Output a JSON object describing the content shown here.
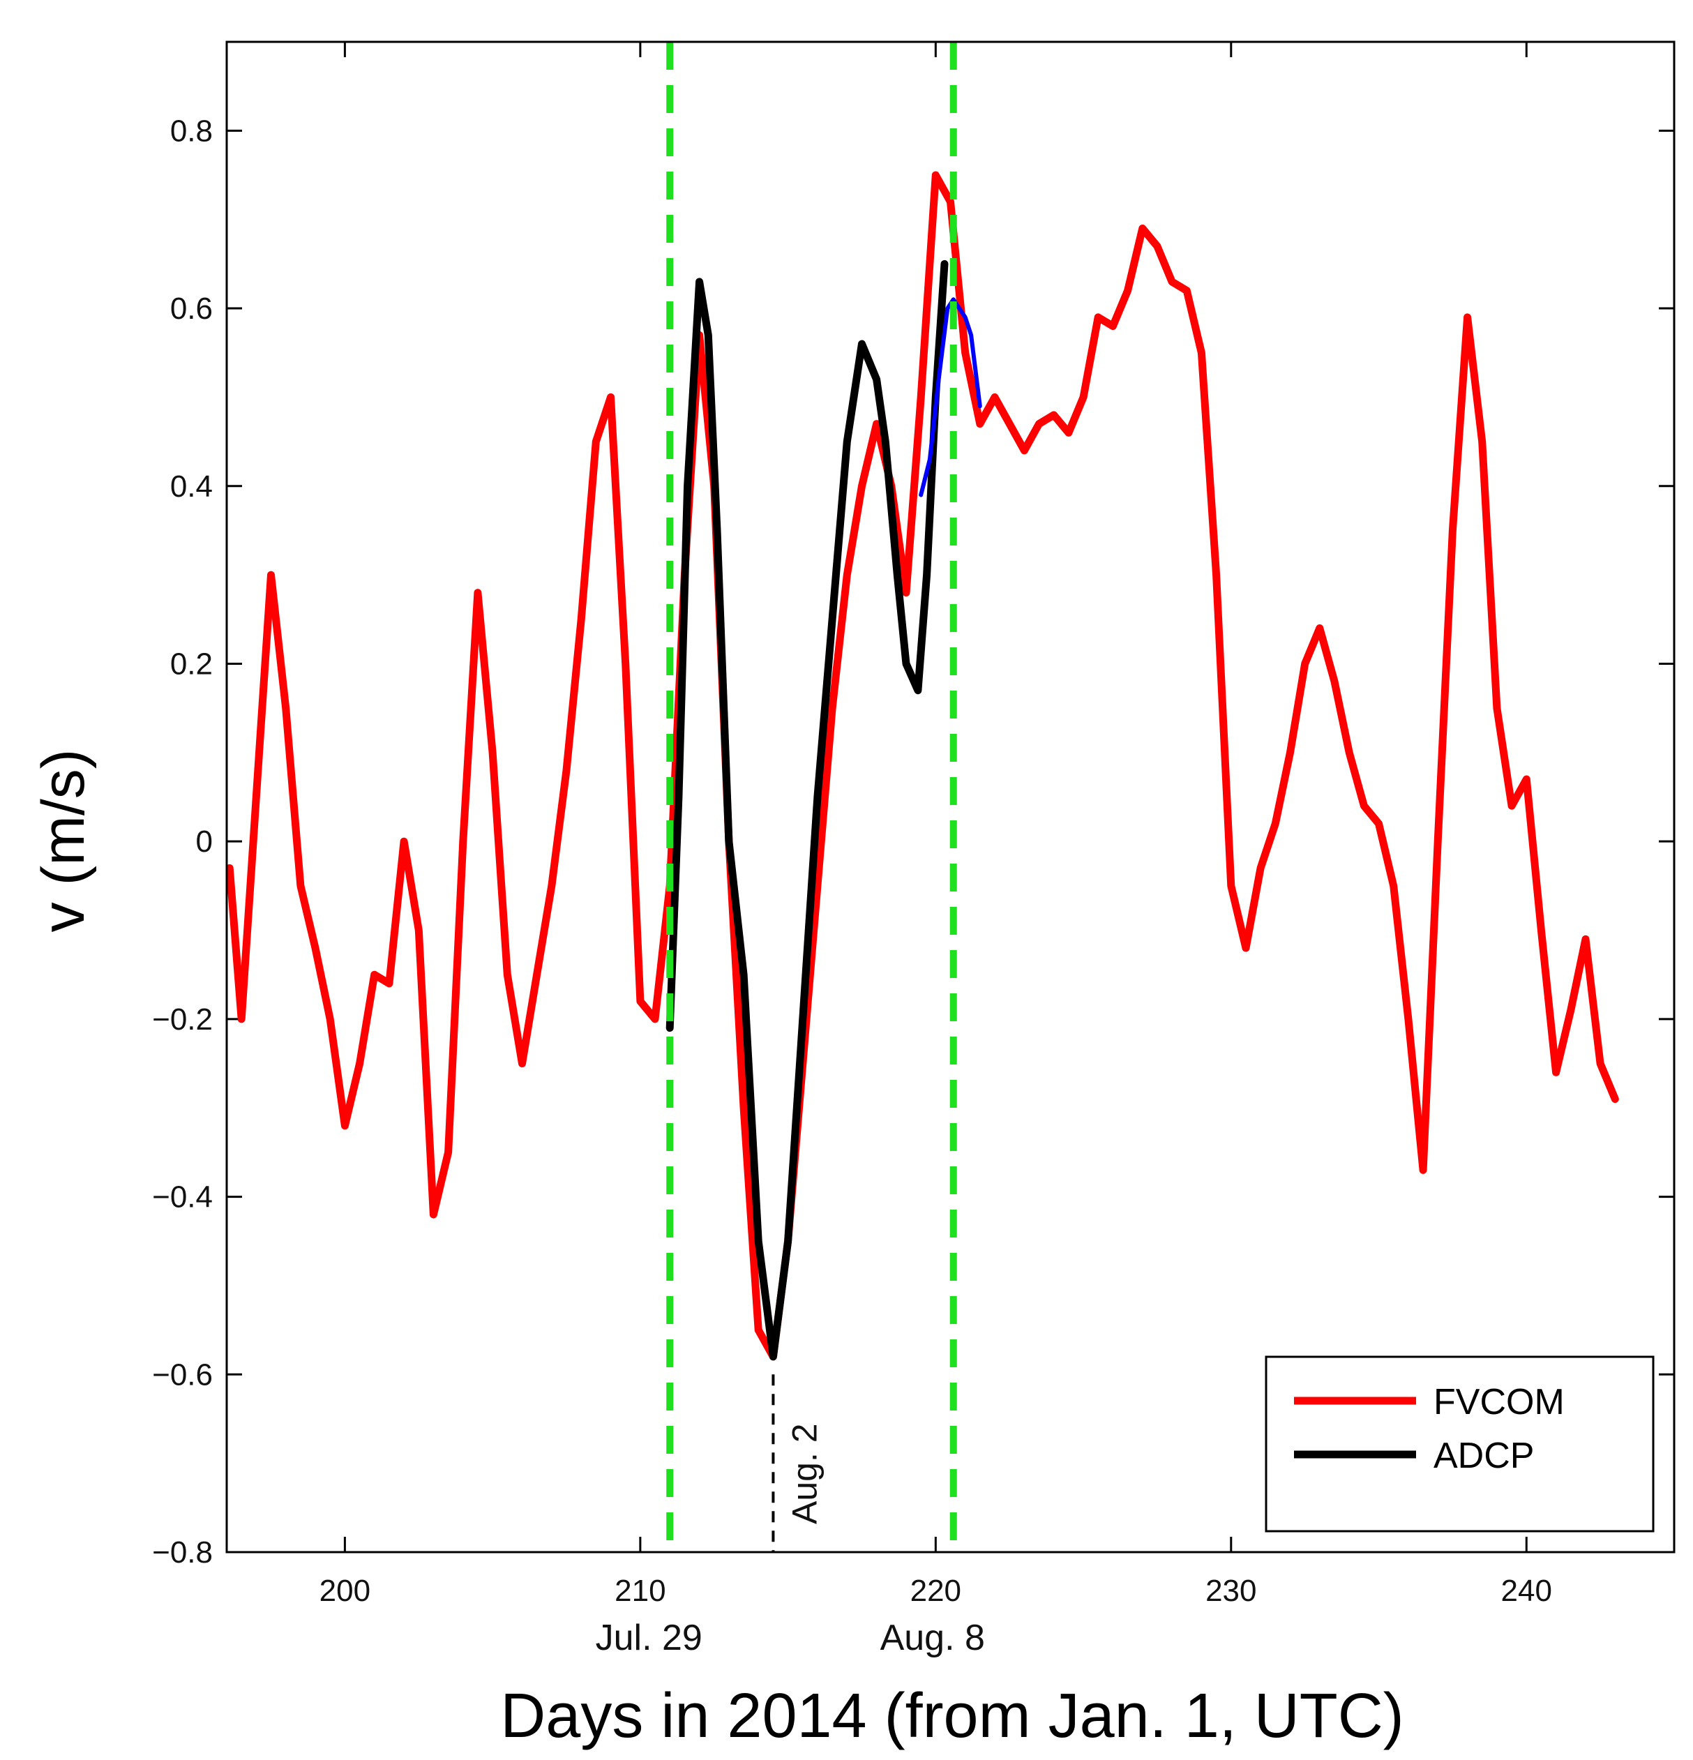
{
  "chart_data": {
    "type": "line",
    "title": "",
    "xlabel": "Days in 2014 (from Jan. 1, UTC)",
    "ylabel": "v (m/s)",
    "xlim": [
      196,
      245
    ],
    "ylim": [
      -0.8,
      0.9
    ],
    "xticks": [
      200,
      210,
      220,
      230,
      240
    ],
    "yticks": [
      -0.8,
      -0.6,
      -0.4,
      -0.2,
      0,
      0.2,
      0.4,
      0.6,
      0.8
    ],
    "ytick_labels": [
      "−0.8",
      "−0.6",
      "−0.4",
      "−0.2",
      "0",
      "0.2",
      "0.4",
      "0.6",
      "0.8"
    ],
    "date_markers": [
      {
        "x": 211,
        "label": "Jul. 29",
        "color": "#1fe01f",
        "style": "dashed"
      },
      {
        "x": 220.6,
        "label": "Aug. 8",
        "color": "#1fe01f",
        "style": "dashed"
      }
    ],
    "annotation": {
      "x": 214.5,
      "y_top": -0.6,
      "y_bottom": -0.8,
      "label": "Aug. 2",
      "color": "#000000",
      "style": "dashed"
    },
    "series": [
      {
        "name": "FVCOM",
        "color": "#ff0000",
        "x": [
          196.1,
          196.5,
          197.0,
          197.5,
          198.0,
          198.5,
          199.0,
          199.5,
          200.0,
          200.5,
          201.0,
          201.5,
          202.0,
          202.5,
          203.0,
          203.5,
          204.0,
          204.5,
          205.0,
          205.5,
          206.0,
          206.5,
          207.0,
          207.5,
          208.0,
          208.5,
          209.0,
          209.5,
          210.0,
          210.5,
          211.0,
          211.5,
          212.0,
          212.5,
          213.0,
          213.5,
          214.0,
          214.5,
          215.0,
          215.5,
          216.0,
          216.5,
          217.0,
          217.5,
          218.0,
          218.5,
          219.0,
          219.5,
          220.0,
          220.5,
          221.0,
          221.5,
          222.0,
          222.5,
          223.0,
          223.5,
          224.0,
          224.5,
          225.0,
          225.5,
          226.0,
          226.5,
          227.0,
          227.5,
          228.0,
          228.5,
          229.0,
          229.5,
          230.0,
          230.5,
          231.0,
          231.5,
          232.0,
          232.5,
          233.0,
          233.5,
          234.0,
          234.5,
          235.0,
          235.5,
          236.0,
          236.5,
          237.0,
          237.5,
          238.0,
          238.5,
          239.0,
          239.5,
          240.0,
          240.5,
          241.0,
          241.5,
          242.0,
          242.5,
          243.0
        ],
        "values": [
          -0.03,
          -0.2,
          0.05,
          0.3,
          0.15,
          -0.05,
          -0.12,
          -0.2,
          -0.32,
          -0.25,
          -0.15,
          -0.16,
          0.0,
          -0.1,
          -0.42,
          -0.35,
          0.0,
          0.28,
          0.1,
          -0.15,
          -0.25,
          -0.15,
          -0.05,
          0.08,
          0.25,
          0.45,
          0.5,
          0.2,
          -0.18,
          -0.2,
          -0.05,
          0.3,
          0.57,
          0.4,
          0.0,
          -0.3,
          -0.55,
          -0.58,
          -0.45,
          -0.25,
          -0.05,
          0.15,
          0.3,
          0.4,
          0.47,
          0.4,
          0.28,
          0.5,
          0.75,
          0.72,
          0.55,
          0.47,
          0.5,
          0.47,
          0.44,
          0.47,
          0.48,
          0.46,
          0.5,
          0.59,
          0.58,
          0.62,
          0.69,
          0.67,
          0.63,
          0.62,
          0.55,
          0.3,
          -0.05,
          -0.12,
          -0.03,
          0.02,
          0.1,
          0.2,
          0.24,
          0.18,
          0.1,
          0.04,
          0.02,
          -0.05,
          -0.2,
          -0.37,
          0.0,
          0.35,
          0.59,
          0.45,
          0.15,
          0.04,
          0.07,
          -0.1,
          -0.26,
          -0.19,
          -0.11,
          -0.25,
          -0.29
        ]
      },
      {
        "name": "ADCP",
        "color": "#000000",
        "x": [
          211.0,
          211.3,
          211.6,
          212.0,
          212.3,
          212.6,
          213.0,
          213.5,
          214.0,
          214.5,
          215.0,
          215.5,
          216.0,
          216.5,
          217.0,
          217.5,
          218.0,
          218.3,
          218.7,
          219.0,
          219.4,
          219.7,
          220.0,
          220.3
        ],
        "values": [
          -0.21,
          0.05,
          0.4,
          0.63,
          0.57,
          0.35,
          0.0,
          -0.15,
          -0.45,
          -0.58,
          -0.45,
          -0.2,
          0.05,
          0.25,
          0.45,
          0.56,
          0.52,
          0.45,
          0.3,
          0.2,
          0.17,
          0.3,
          0.5,
          0.65
        ]
      },
      {
        "name": "",
        "color": "#0000ff",
        "x": [
          219.5,
          219.8,
          220.1,
          220.4,
          220.6,
          220.8,
          221.0,
          221.2,
          221.5
        ],
        "values": [
          0.39,
          0.43,
          0.52,
          0.6,
          0.61,
          0.6,
          0.59,
          0.57,
          0.49
        ]
      }
    ],
    "legend": {
      "position": "bottom-right",
      "entries": [
        {
          "label": "FVCOM",
          "color": "#ff0000"
        },
        {
          "label": "ADCP",
          "color": "#000000"
        }
      ]
    }
  }
}
